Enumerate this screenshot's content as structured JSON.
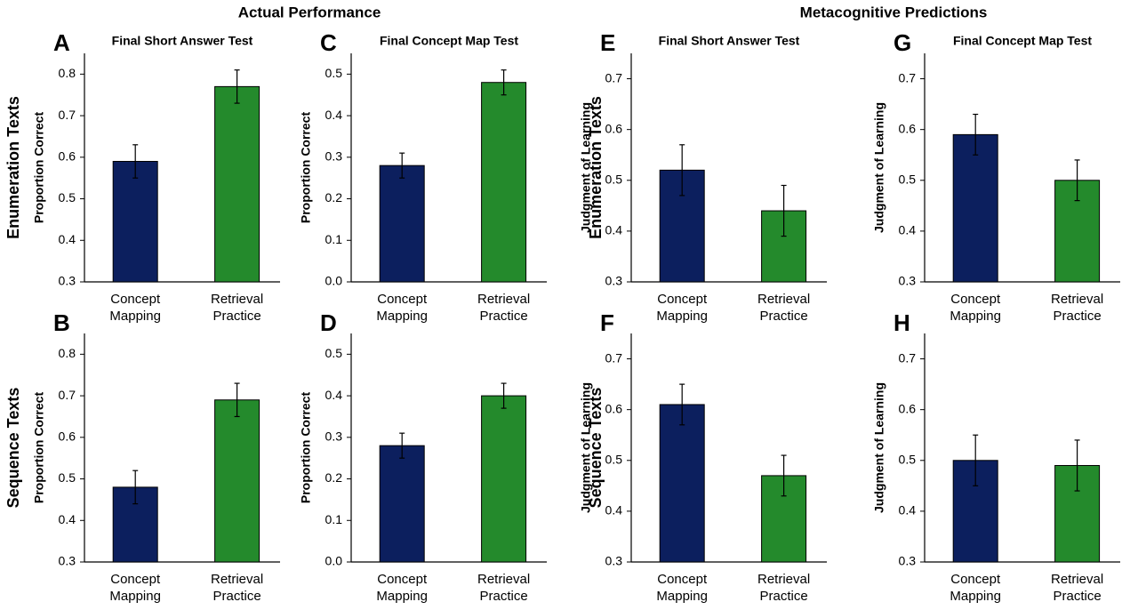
{
  "sections": [
    "Actual Performance",
    "Metacognitive Predictions"
  ],
  "chart_data": [
    {
      "type": "bar",
      "panel": "A",
      "title": "Final Short Answer Test",
      "row_label": "Enumeration Texts",
      "ylabel": "Proportion Correct",
      "categories": [
        "Concept Mapping",
        "Retrieval Practice"
      ],
      "values": [
        0.59,
        0.77
      ],
      "errors": [
        0.04,
        0.04
      ],
      "colors": [
        "#0c1f5e",
        "#248a2c"
      ],
      "ylim": [
        0.3,
        0.85
      ],
      "yticks": [
        0.3,
        0.4,
        0.5,
        0.6,
        0.7,
        0.8
      ]
    },
    {
      "type": "bar",
      "panel": "B",
      "row_label": "Sequence Texts",
      "ylabel": "Proportion Correct",
      "categories": [
        "Concept Mapping",
        "Retrieval Practice"
      ],
      "values": [
        0.48,
        0.69
      ],
      "errors": [
        0.04,
        0.04
      ],
      "colors": [
        "#0c1f5e",
        "#248a2c"
      ],
      "ylim": [
        0.3,
        0.85
      ],
      "yticks": [
        0.3,
        0.4,
        0.5,
        0.6,
        0.7,
        0.8
      ]
    },
    {
      "type": "bar",
      "panel": "C",
      "title": "Final Concept Map Test",
      "ylabel": "Proportion Correct",
      "categories": [
        "Concept Mapping",
        "Retrieval Practice"
      ],
      "values": [
        0.28,
        0.48
      ],
      "errors": [
        0.03,
        0.03
      ],
      "colors": [
        "#0c1f5e",
        "#248a2c"
      ],
      "ylim": [
        0,
        0.55
      ],
      "yticks": [
        {
          "value": 0,
          "label": "0.0"
        },
        0.1,
        0.2,
        0.3,
        0.4,
        0.5
      ]
    },
    {
      "type": "bar",
      "panel": "D",
      "ylabel": "Proportion Correct",
      "categories": [
        "Concept Mapping",
        "Retrieval Practice"
      ],
      "values": [
        0.28,
        0.4
      ],
      "errors": [
        0.03,
        0.03
      ],
      "colors": [
        "#0c1f5e",
        "#248a2c"
      ],
      "ylim": [
        0,
        0.55
      ],
      "yticks": [
        {
          "value": 0,
          "label": "0.0"
        },
        0.1,
        0.2,
        0.3,
        0.4,
        0.5
      ]
    },
    {
      "type": "bar",
      "panel": "E",
      "title": "Final Short Answer Test",
      "row_label": "Enumeration Texts",
      "ylabel": "Judgment of Learning",
      "categories": [
        "Concept Mapping",
        "Retrieval Practice"
      ],
      "values": [
        0.52,
        0.44
      ],
      "errors": [
        0.05,
        0.05
      ],
      "colors": [
        "#0c1f5e",
        "#248a2c"
      ],
      "ylim": [
        0.3,
        0.75
      ],
      "yticks": [
        0.3,
        0.4,
        0.5,
        0.6,
        0.7
      ]
    },
    {
      "type": "bar",
      "panel": "F",
      "row_label": "Sequence Texts",
      "ylabel": "Judgment of Learning",
      "categories": [
        "Concept Mapping",
        "Retrieval Practice"
      ],
      "values": [
        0.61,
        0.47
      ],
      "errors": [
        0.04,
        0.04
      ],
      "colors": [
        "#0c1f5e",
        "#248a2c"
      ],
      "ylim": [
        0.3,
        0.75
      ],
      "yticks": [
        0.3,
        0.4,
        0.5,
        0.6,
        0.7
      ]
    },
    {
      "type": "bar",
      "panel": "G",
      "title": "Final Concept Map Test",
      "ylabel": "Judgment of Learning",
      "categories": [
        "Concept Mapping",
        "Retrieval Practice"
      ],
      "values": [
        0.59,
        0.5
      ],
      "errors": [
        0.04,
        0.04
      ],
      "colors": [
        "#0c1f5e",
        "#248a2c"
      ],
      "ylim": [
        0.3,
        0.75
      ],
      "yticks": [
        0.3,
        0.4,
        0.5,
        0.6,
        0.7
      ]
    },
    {
      "type": "bar",
      "panel": "H",
      "ylabel": "Judgment of Learning",
      "categories": [
        "Concept Mapping",
        "Retrieval Practice"
      ],
      "values": [
        0.5,
        0.49
      ],
      "errors": [
        0.05,
        0.05
      ],
      "colors": [
        "#0c1f5e",
        "#248a2c"
      ],
      "ylim": [
        0.3,
        0.75
      ],
      "yticks": [
        0.3,
        0.4,
        0.5,
        0.6,
        0.7
      ]
    }
  ]
}
